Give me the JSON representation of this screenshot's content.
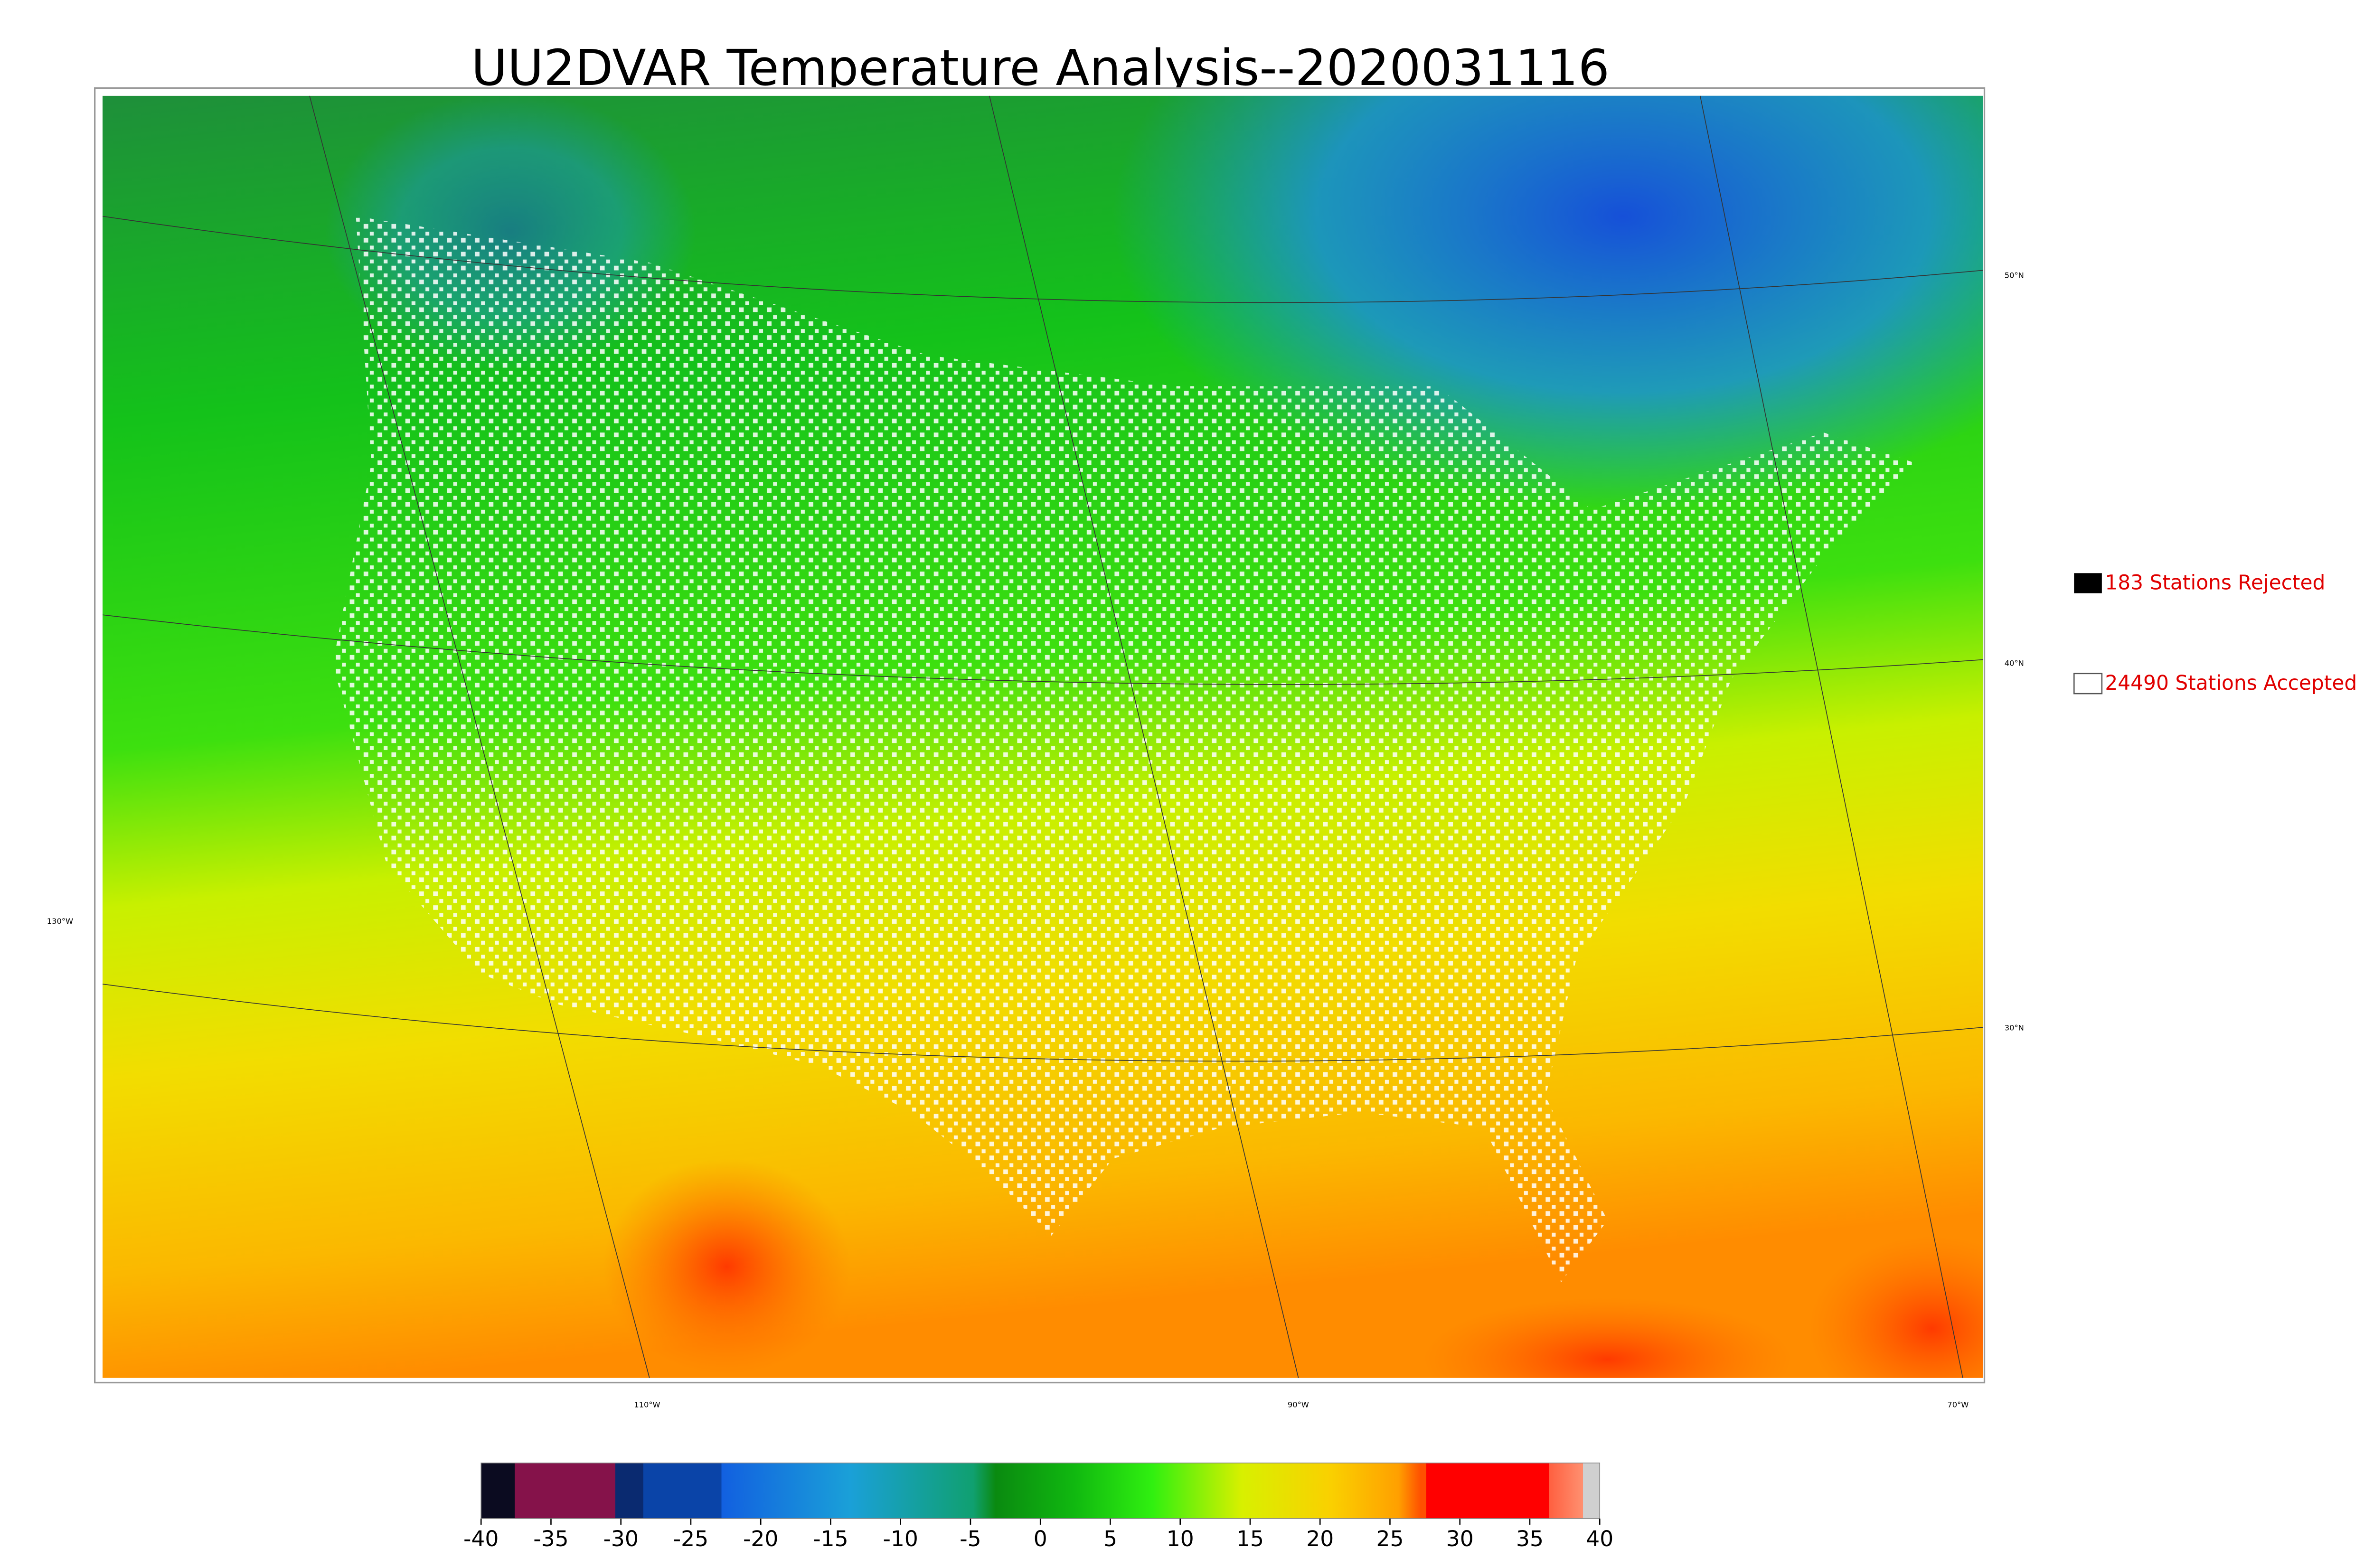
{
  "title": "UU2DVAR Temperature Analysis--2020031116",
  "graticule_labels": {
    "lat": [
      "50°N",
      "40°N",
      "30°N"
    ],
    "lon": [
      "130°W",
      "110°W",
      "90°W",
      "70°W"
    ]
  },
  "legend": [
    {
      "label": "183 Stations Rejected"
    },
    {
      "label": "24490 Stations Accepted"
    }
  ],
  "colorbar": {
    "lim": [
      -40,
      40
    ],
    "ticks": [
      -40,
      -35,
      -30,
      -25,
      -20,
      -15,
      -10,
      -5,
      0,
      5,
      10,
      15,
      20,
      25,
      30,
      35,
      40
    ]
  }
}
